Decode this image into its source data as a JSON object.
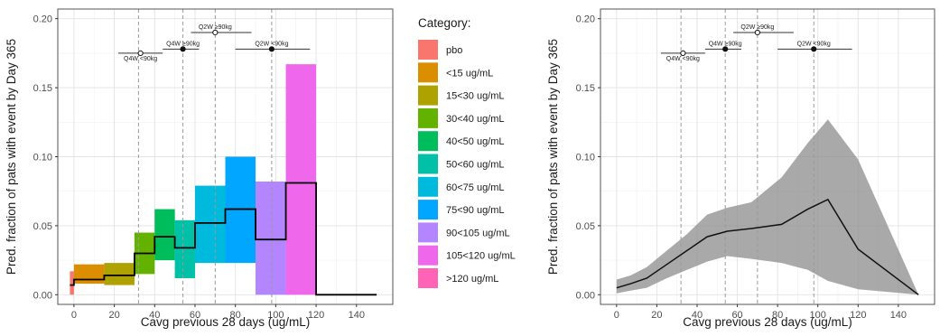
{
  "chart_data": [
    {
      "type": "bar",
      "xlabel": "Cavg previous 28 days (ug/mL)",
      "ylabel": "Pred. fraction of pats with event by Day 365",
      "xlim": [
        -8,
        158
      ],
      "ylim": [
        -0.007,
        0.207
      ],
      "xticks": [
        0,
        20,
        40,
        60,
        80,
        100,
        120,
        140
      ],
      "yticks": [
        0.0,
        0.05,
        0.1,
        0.15,
        0.2
      ],
      "ytick_labels": [
        "0.00",
        "0.05",
        "0.10",
        "0.15",
        "0.20"
      ],
      "grid": true,
      "bins": [
        {
          "category": "pbo",
          "x": [
            -2,
            0
          ],
          "ylow": 0.0,
          "yhigh": 0.017,
          "color": "#F8766D"
        },
        {
          "category": "<15 ug/mL",
          "x": [
            0,
            15
          ],
          "ylow": 0.008,
          "yhigh": 0.022,
          "color": "#DB8E00"
        },
        {
          "category": "15<30 ug/mL",
          "x": [
            15,
            30
          ],
          "ylow": 0.007,
          "yhigh": 0.023,
          "color": "#AEA200"
        },
        {
          "category": "30<40 ug/mL",
          "x": [
            30,
            40
          ],
          "ylow": 0.015,
          "yhigh": 0.045,
          "color": "#64B200"
        },
        {
          "category": "40<50 ug/mL",
          "x": [
            40,
            50
          ],
          "ylow": 0.025,
          "yhigh": 0.062,
          "color": "#00BD5C"
        },
        {
          "category": "50<60 ug/mL",
          "x": [
            50,
            60
          ],
          "ylow": 0.012,
          "yhigh": 0.054,
          "color": "#00C1A7"
        },
        {
          "category": "60<75 ug/mL",
          "x": [
            60,
            75
          ],
          "ylow": 0.023,
          "yhigh": 0.079,
          "color": "#00BADE"
        },
        {
          "category": "75<90 ug/mL",
          "x": [
            75,
            90
          ],
          "ylow": 0.023,
          "yhigh": 0.1,
          "color": "#00A6FF"
        },
        {
          "category": "90<105 ug/mL",
          "x": [
            90,
            105
          ],
          "ylow": 0.0,
          "yhigh": 0.082,
          "color": "#B385FF"
        },
        {
          "category": "105<120 ug/mL",
          "x": [
            105,
            120
          ],
          "ylow": 0.0,
          "yhigh": 0.167,
          "color": "#EF67EB"
        },
        {
          "category": ">120 ug/mL",
          "x": [
            120,
            150
          ],
          "ylow": 0.0,
          "yhigh": 0.0,
          "color": "#FF63B6"
        }
      ],
      "step_line": {
        "x": [
          -2,
          0,
          0,
          15,
          15,
          30,
          30,
          40,
          40,
          50,
          50,
          60,
          60,
          75,
          75,
          90,
          90,
          105,
          105,
          120,
          120,
          150
        ],
        "y": [
          0.007,
          0.007,
          0.011,
          0.011,
          0.014,
          0.014,
          0.03,
          0.03,
          0.042,
          0.042,
          0.034,
          0.034,
          0.052,
          0.052,
          0.062,
          0.062,
          0.04,
          0.04,
          0.081,
          0.081,
          0.0,
          0.0
        ]
      },
      "vlines": [
        32,
        54,
        70,
        98
      ],
      "annotations": [
        {
          "label": "Q4W <90kg",
          "x": 33,
          "y": 0.175,
          "xmin": 22,
          "xmax": 44,
          "marker": "open",
          "label_below": true
        },
        {
          "label": "Q4W ≥90kg",
          "x": 54,
          "y": 0.178,
          "xmin": 44,
          "xmax": 62,
          "marker": "filled",
          "label_below": false
        },
        {
          "label": "Q2W ≥90kg",
          "x": 70,
          "y": 0.19,
          "xmin": 58,
          "xmax": 88,
          "marker": "open",
          "label_below": false
        },
        {
          "label": "Q2W <90kg",
          "x": 98,
          "y": 0.178,
          "xmin": 80,
          "xmax": 117,
          "marker": "filled",
          "label_below": false
        }
      ]
    },
    {
      "type": "line",
      "xlabel": "Cavg previous 28 days (ug/mL)",
      "ylabel": "Pred. fraction of pats with event by Day 365",
      "xlim": [
        -8,
        158
      ],
      "ylim": [
        -0.007,
        0.207
      ],
      "xticks": [
        0,
        20,
        40,
        60,
        80,
        100,
        120,
        140
      ],
      "yticks": [
        0.0,
        0.05,
        0.1,
        0.15,
        0.2
      ],
      "ytick_labels": [
        "0.00",
        "0.05",
        "0.10",
        "0.15",
        "0.20"
      ],
      "grid": true,
      "x": [
        0,
        7,
        15,
        25,
        35,
        45,
        55,
        67,
        82,
        95,
        105,
        120,
        150
      ],
      "y": [
        0.005,
        0.008,
        0.012,
        0.022,
        0.032,
        0.042,
        0.046,
        0.048,
        0.051,
        0.062,
        0.069,
        0.033,
        0.0
      ],
      "ribbon_low": [
        0.001,
        0.003,
        0.005,
        0.012,
        0.018,
        0.024,
        0.028,
        0.026,
        0.023,
        0.018,
        0.01,
        0.004,
        0.0
      ],
      "ribbon_high": [
        0.011,
        0.014,
        0.02,
        0.032,
        0.044,
        0.058,
        0.063,
        0.067,
        0.085,
        0.11,
        0.127,
        0.098,
        0.0
      ],
      "vlines": [
        32,
        54,
        70,
        98
      ],
      "annotations": [
        {
          "label": "Q4W <90kg",
          "x": 33,
          "y": 0.175,
          "xmin": 22,
          "xmax": 44,
          "marker": "open",
          "label_below": true
        },
        {
          "label": "Q4W ≥90kg",
          "x": 54,
          "y": 0.178,
          "xmin": 44,
          "xmax": 62,
          "marker": "filled",
          "label_below": false
        },
        {
          "label": "Q2W ≥90kg",
          "x": 70,
          "y": 0.19,
          "xmin": 58,
          "xmax": 88,
          "marker": "open",
          "label_below": false
        },
        {
          "label": "Q2W <90kg",
          "x": 98,
          "y": 0.178,
          "xmin": 80,
          "xmax": 117,
          "marker": "filled",
          "label_below": false
        }
      ]
    }
  ],
  "legend": {
    "title": "Category:",
    "items": [
      {
        "label": "pbo",
        "color": "#F8766D"
      },
      {
        "label": "<15 ug/mL",
        "color": "#DB8E00"
      },
      {
        "label": "15<30 ug/mL",
        "color": "#AEA200"
      },
      {
        "label": "30<40 ug/mL",
        "color": "#64B200"
      },
      {
        "label": "40<50 ug/mL",
        "color": "#00BD5C"
      },
      {
        "label": "50<60 ug/mL",
        "color": "#00C1A7"
      },
      {
        "label": "60<75 ug/mL",
        "color": "#00BADE"
      },
      {
        "label": "75<90 ug/mL",
        "color": "#00A6FF"
      },
      {
        "label": "90<105 ug/mL",
        "color": "#B385FF"
      },
      {
        "label": "105<120 ug/mL",
        "color": "#EF67EB"
      },
      {
        "label": ">120 ug/mL",
        "color": "#FF63B6"
      }
    ]
  }
}
